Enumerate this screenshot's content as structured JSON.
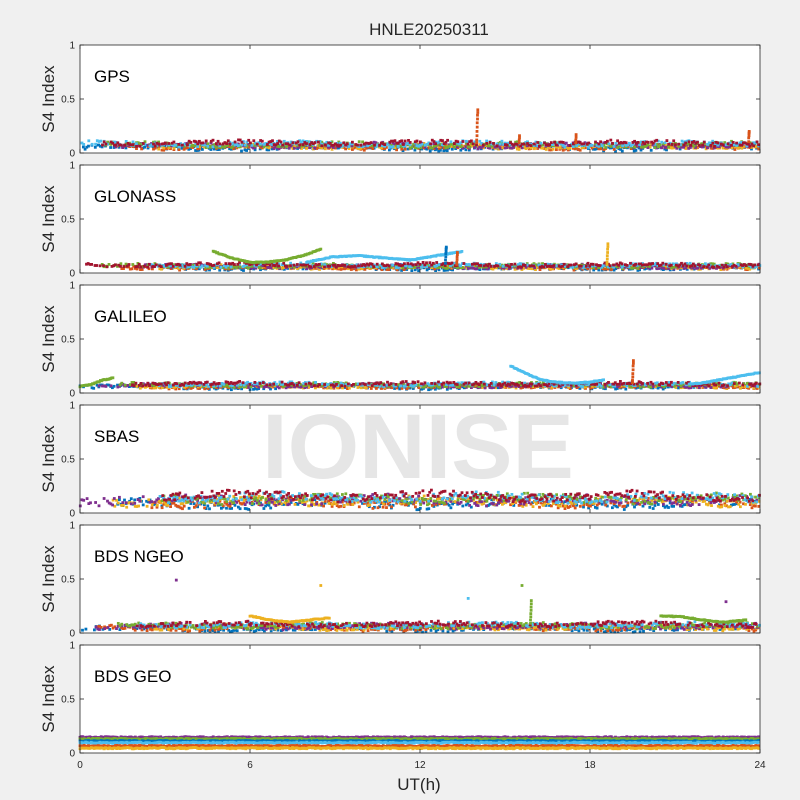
{
  "title": "HNLE20250311",
  "watermark": "IONISE",
  "colors": [
    "#0072BD",
    "#D95319",
    "#EDB120",
    "#7E2F8E",
    "#77AC30",
    "#4DBEEE",
    "#A2142F"
  ],
  "chart_data": {
    "type": "scatter",
    "title": "HNLE20250311",
    "xlabel": "UT(h)",
    "xlim": [
      0,
      24
    ],
    "xticks": [
      0,
      6,
      12,
      18,
      24
    ],
    "xticklabels": [
      "0",
      "6",
      "12",
      "18",
      "24"
    ],
    "panels": [
      {
        "name": "GPS",
        "ylabel": "S4 Index",
        "ylim": [
          0,
          1
        ],
        "yticks": [
          0,
          0.5,
          1
        ],
        "yticklabels": [
          "0",
          "0.5",
          "1"
        ],
        "baseline": 0.07,
        "noise": 0.02,
        "features": [
          {
            "type": "spike",
            "x": 14.0,
            "values": [
              0.12,
              0.2,
              0.28,
              0.35,
              0.4
            ]
          },
          {
            "type": "spike",
            "x": 23.6,
            "values": [
              0.14,
              0.18,
              0.2
            ]
          },
          {
            "type": "spike",
            "x": 15.5,
            "values": [
              0.12,
              0.16
            ]
          },
          {
            "type": "spike",
            "x": 17.5,
            "values": [
              0.12,
              0.17
            ]
          }
        ]
      },
      {
        "name": "GLONASS",
        "ylabel": "S4 Index",
        "ylim": [
          0,
          1
        ],
        "yticks": [
          0,
          0.5,
          1
        ],
        "yticklabels": [
          "0",
          "0.5",
          "1"
        ],
        "baseline": 0.06,
        "noise": 0.015,
        "features": [
          {
            "type": "arc",
            "x0": 4.7,
            "x1": 8.5,
            "values": [
              0.2,
              0.14,
              0.1,
              0.1,
              0.12,
              0.16,
              0.22
            ],
            "color": 4
          },
          {
            "type": "arc",
            "x0": 8.0,
            "x1": 13.5,
            "values": [
              0.1,
              0.15,
              0.16,
              0.14,
              0.12,
              0.16,
              0.2
            ],
            "color": 5
          },
          {
            "type": "spike",
            "x": 12.9,
            "values": [
              0.12,
              0.18,
              0.22,
              0.24
            ],
            "color": 0
          },
          {
            "type": "spike",
            "x": 18.6,
            "values": [
              0.1,
              0.16,
              0.22,
              0.27
            ],
            "color": 2
          },
          {
            "type": "spike",
            "x": 13.3,
            "values": [
              0.1,
              0.15,
              0.19
            ],
            "color": 1
          }
        ]
      },
      {
        "name": "GALILEO",
        "ylabel": "S4 Index",
        "ylim": [
          0,
          1
        ],
        "yticks": [
          0,
          0.5,
          1
        ],
        "yticklabels": [
          "0",
          "0.5",
          "1"
        ],
        "baseline": 0.07,
        "noise": 0.015,
        "features": [
          {
            "type": "arc",
            "x0": 15.2,
            "x1": 18.5,
            "values": [
              0.25,
              0.18,
              0.12,
              0.1,
              0.09,
              0.1,
              0.12
            ],
            "color": 5
          },
          {
            "type": "arc",
            "x0": 21.5,
            "x1": 24.0,
            "values": [
              0.08,
              0.1,
              0.13,
              0.16,
              0.19
            ],
            "color": 5
          },
          {
            "type": "spike",
            "x": 19.5,
            "values": [
              0.12,
              0.18,
              0.25,
              0.3
            ],
            "color": 1
          },
          {
            "type": "arc",
            "x0": 0.0,
            "x1": 1.2,
            "values": [
              0.06,
              0.08,
              0.12,
              0.14
            ],
            "color": 4
          }
        ]
      },
      {
        "name": "SBAS",
        "ylabel": "S4 Index",
        "ylim": [
          0,
          1
        ],
        "yticks": [
          0,
          0.5,
          1
        ],
        "yticklabels": [
          "0",
          "0.5",
          "1"
        ],
        "baseline": 0.12,
        "noise": 0.035,
        "features": []
      },
      {
        "name": "BDS NGEO",
        "ylabel": "S4 Index",
        "ylim": [
          0,
          1
        ],
        "yticks": [
          0,
          0.5,
          1
        ],
        "yticklabels": [
          "0",
          "0.5",
          "1"
        ],
        "baseline": 0.06,
        "noise": 0.02,
        "features": [
          {
            "type": "point",
            "x": 3.4,
            "y": 0.49,
            "color": 3
          },
          {
            "type": "point",
            "x": 8.5,
            "y": 0.44,
            "color": 2
          },
          {
            "type": "point",
            "x": 15.6,
            "y": 0.44,
            "color": 4
          },
          {
            "type": "point",
            "x": 13.7,
            "y": 0.32,
            "color": 5
          },
          {
            "type": "point",
            "x": 22.8,
            "y": 0.29,
            "color": 3
          },
          {
            "type": "spike",
            "x": 15.9,
            "values": [
              0.12,
              0.18,
              0.24,
              0.3
            ],
            "color": 4
          },
          {
            "type": "arc",
            "x0": 6.0,
            "x1": 8.8,
            "values": [
              0.16,
              0.12,
              0.1,
              0.12,
              0.14
            ],
            "color": 2
          },
          {
            "type": "arc",
            "x0": 20.5,
            "x1": 23.5,
            "values": [
              0.16,
              0.15,
              0.12,
              0.1,
              0.12
            ],
            "color": 4
          }
        ]
      },
      {
        "name": "BDS GEO",
        "ylabel": "S4 Index",
        "ylim": [
          0,
          1
        ],
        "yticks": [
          0,
          0.5,
          1
        ],
        "yticklabels": [
          "0",
          "0.5",
          "1"
        ],
        "bands": [
          {
            "y": 0.145,
            "color": 3
          },
          {
            "y": 0.13,
            "color": 4
          },
          {
            "y": 0.11,
            "color": 0
          },
          {
            "y": 0.095,
            "color": 5
          },
          {
            "y": 0.065,
            "color": 1
          },
          {
            "y": 0.045,
            "color": 2
          }
        ],
        "noise": 0.006,
        "features": []
      }
    ]
  }
}
